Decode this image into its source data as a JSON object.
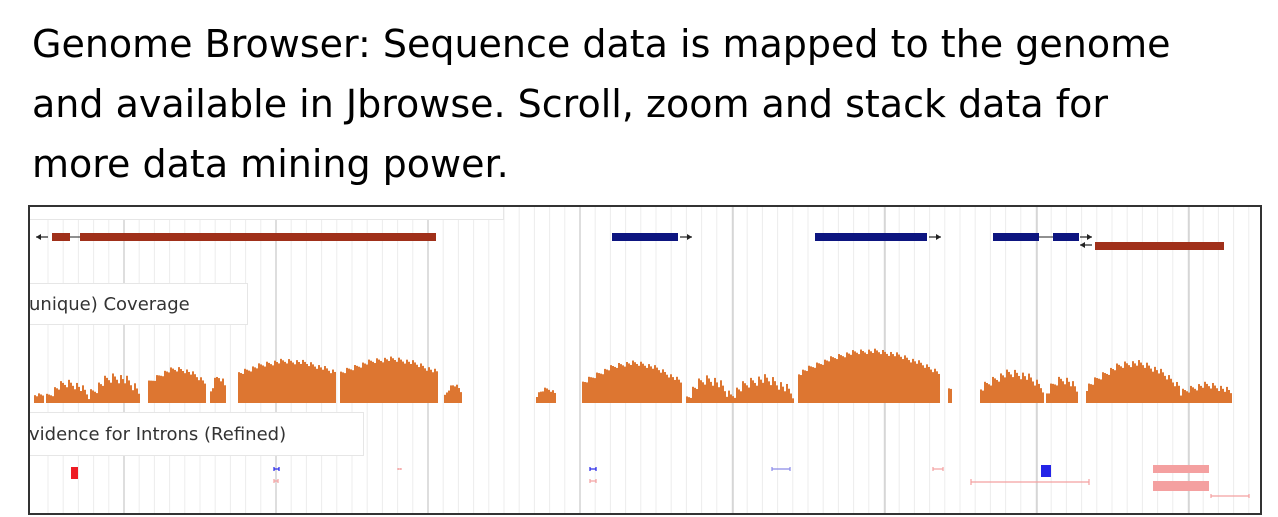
{
  "slide": {
    "caption_lines": [
      "Genome Browser:  Sequence data is mapped to the genome",
      "and available in Jbrowse.  Scroll, zoom and stack data for",
      "more data mining power."
    ]
  },
  "jbrowse": {
    "tracks": {
      "top_track_label": "",
      "coverage_label": "unique) Coverage",
      "introns_label": "vidence for Introns (Refined)"
    }
  },
  "colors": {
    "gene_reverse": "#a0301a",
    "gene_forward": "#0d1580",
    "coverage": "#dd7631",
    "intron_strong_red": "#ee1c24",
    "intron_light_red": "#f4a0a0",
    "intron_strong_blue": "#2424e8",
    "intron_light_blue": "#8a8ae8",
    "gridline_minor": "#ececec",
    "gridline_major": "#c8c8c8"
  }
}
